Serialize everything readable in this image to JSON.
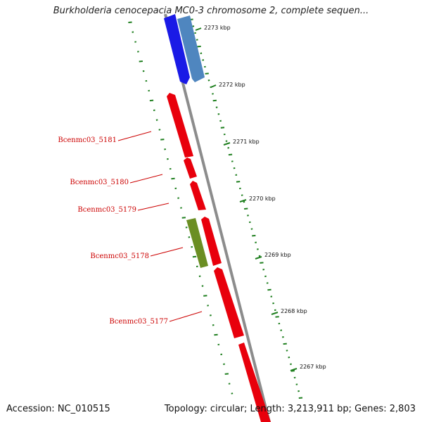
{
  "title": "Burkholderia cenocepacia MC0-3 chromosome 2, complete sequen...",
  "footer": {
    "accession": "Accession: NC_010515",
    "summary": "Topology: circular; Length: 3,213,911 bp; Genes: 2,803"
  },
  "scale_labels": [
    "2273 kbp",
    "2272 kbp",
    "2271 kbp",
    "2270 kbp",
    "2269 kbp",
    "2268 kbp",
    "2267 kbp"
  ],
  "colors": {
    "background": "#ffffff",
    "backbone": "#8c8c8c",
    "forward_gene": "#e8000c",
    "other_feature": "#6b8e23",
    "upper_blue": "#1a1ae6",
    "upper_steelblue": "#4f86bf",
    "tick": "#1f7f1f",
    "gene_label": "#cc0000"
  },
  "gene_labels": [
    "Bcenmc03_5181",
    "Bcenmc03_5180",
    "Bcenmc03_5179",
    "Bcenmc03_5178",
    "Bcenmc03_5177"
  ]
}
